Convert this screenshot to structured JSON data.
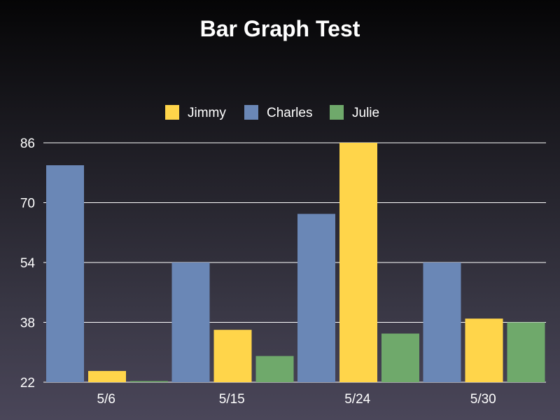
{
  "chart_data": {
    "type": "bar",
    "title": "Bar Graph Test",
    "xlabel": "",
    "ylabel": "",
    "categories": [
      "5/6",
      "5/15",
      "5/24",
      "5/30"
    ],
    "series": [
      {
        "name": "Charles",
        "color": "#6a87b6",
        "values": [
          80,
          54,
          67,
          54
        ]
      },
      {
        "name": "Jimmy",
        "color": "#ffd54a",
        "values": [
          25,
          36,
          86,
          39
        ]
      },
      {
        "name": "Julie",
        "color": "#6fa96b",
        "values": [
          22.3,
          29,
          35,
          38
        ]
      }
    ],
    "legend": {
      "placement": "top-center",
      "order": [
        "Jimmy",
        "Charles",
        "Julie"
      ]
    },
    "yticks": [
      22,
      38,
      54,
      70,
      86
    ],
    "ylim": [
      22,
      86
    ],
    "grid": true
  }
}
